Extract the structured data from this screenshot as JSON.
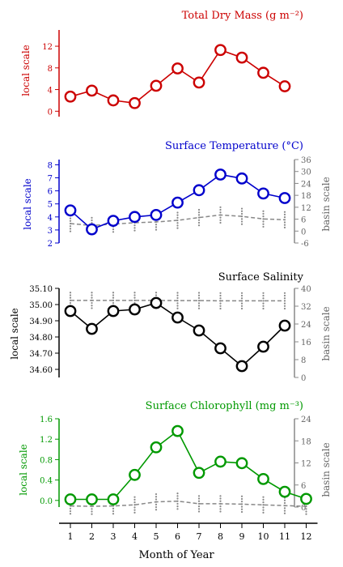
{
  "chart_data": [
    {
      "type": "line",
      "title": "Total Dry Mass (g m⁻²)",
      "ylabel": "local scale",
      "color": "#cc0000",
      "x": [
        1,
        2,
        3,
        4,
        5,
        6,
        7,
        8,
        9,
        10,
        11
      ],
      "values": [
        2.7,
        3.8,
        2.0,
        1.5,
        4.7,
        7.9,
        5.3,
        11.3,
        9.9,
        7.1,
        4.6
      ],
      "ylim": [
        -1,
        15
      ],
      "yticks": [
        0,
        4,
        8,
        12
      ],
      "right_axis": null
    },
    {
      "type": "line",
      "title": "Surface Temperature (°C)",
      "ylabel": "local scale",
      "ylabel_right": "basin scale",
      "color": "#0000cc",
      "x": [
        1,
        2,
        3,
        4,
        5,
        6,
        7,
        8,
        9,
        10,
        11
      ],
      "values": [
        4.5,
        3.05,
        3.7,
        4.0,
        4.15,
        5.1,
        6.05,
        7.25,
        6.95,
        5.8,
        5.45
      ],
      "ylim": [
        2,
        8.4
      ],
      "yticks": [
        2,
        3,
        4,
        5,
        6,
        7,
        8
      ],
      "right_axis": {
        "ylim": [
          -6,
          36
        ],
        "yticks": [
          -6,
          0,
          6,
          12,
          18,
          24,
          30,
          36
        ],
        "x": [
          1,
          2,
          3,
          4,
          5,
          6,
          7,
          8,
          9,
          10,
          11
        ],
        "values": [
          3.8,
          2.8,
          3.5,
          4.2,
          4.6,
          5.4,
          6.8,
          8.1,
          7.4,
          6.1,
          5.7
        ]
      }
    },
    {
      "type": "line",
      "title": "Surface Salinity",
      "ylabel": "local scale",
      "ylabel_right": "basin scale",
      "color": "#000000",
      "x": [
        1,
        2,
        3,
        4,
        5,
        6,
        7,
        8,
        9,
        10,
        11
      ],
      "values": [
        34.96,
        34.85,
        34.96,
        34.97,
        35.01,
        34.92,
        34.84,
        34.73,
        34.62,
        34.74,
        34.87
      ],
      "ylim": [
        34.55,
        35.1
      ],
      "yticks": [
        34.6,
        34.7,
        34.8,
        34.9,
        35.0,
        35.1
      ],
      "ytick_labels": [
        "34.60",
        "34.70",
        "34.80",
        "34.90",
        "35.00",
        "35.10"
      ],
      "right_axis": {
        "ylim": [
          0,
          40
        ],
        "yticks": [
          0,
          8,
          16,
          24,
          32,
          40
        ],
        "x": [
          1,
          2,
          3,
          4,
          5,
          6,
          7,
          8,
          9,
          10,
          11
        ],
        "values": [
          34.6,
          34.6,
          34.6,
          34.6,
          34.6,
          34.5,
          34.5,
          34.4,
          34.4,
          34.4,
          34.4
        ]
      }
    },
    {
      "type": "line",
      "title": "Surface Chlorophyll (mg m⁻³)",
      "ylabel": "local scale",
      "ylabel_right": "basin scale",
      "color": "#009900",
      "x": [
        1,
        2,
        3,
        4,
        5,
        6,
        7,
        8,
        9,
        10,
        11,
        12
      ],
      "values": [
        0.02,
        0.02,
        0.02,
        0.5,
        1.04,
        1.36,
        0.54,
        0.76,
        0.73,
        0.42,
        0.17,
        0.03
      ],
      "ylim": [
        -0.13,
        1.6
      ],
      "yticks": [
        0.0,
        0.4,
        0.8,
        1.2,
        1.6
      ],
      "ytick_labels": [
        "0.0",
        "0.4",
        "0.8",
        "1.2",
        "1.6"
      ],
      "right_axis": {
        "ylim": [
          0,
          24
        ],
        "yticks": [
          0,
          6,
          12,
          18,
          24
        ],
        "x": [
          1,
          2,
          3,
          4,
          5,
          6,
          7,
          8,
          9,
          10,
          11,
          12
        ],
        "values": [
          0.3,
          0.2,
          0.3,
          0.6,
          1.4,
          1.6,
          0.9,
          0.9,
          0.8,
          0.6,
          0.4,
          0.2
        ]
      }
    }
  ],
  "x_axis": {
    "label": "Month of Year",
    "ticks": [
      1,
      2,
      3,
      4,
      5,
      6,
      7,
      8,
      9,
      10,
      11,
      12
    ]
  },
  "colors": {
    "basin": "#888888",
    "marker_fill": "#ffffff"
  }
}
